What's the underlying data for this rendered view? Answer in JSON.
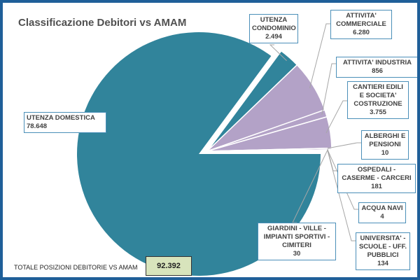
{
  "chart_data": {
    "type": "pie",
    "title": "Classificazione Debitori vs AMAM",
    "slices": [
      {
        "label": "UTENZA DOMESTICA",
        "display": "78.648",
        "value": 78648,
        "color": "#31849b",
        "exploded": true
      },
      {
        "label": "UTENZA CONDOMINIO",
        "display": "2.494",
        "value": 2494,
        "color": "#31849b"
      },
      {
        "label": "ATTIVITA' COMMERCIALE",
        "display": "6.280",
        "value": 6280,
        "color": "#b3a2c7"
      },
      {
        "label": "ATTIVITA' INDUSTRIA",
        "display": "856",
        "value": 856,
        "color": "#b3a2c7"
      },
      {
        "label": "CANTIERI EDILI E SOCIETA' COSTRUZIONE",
        "display": "3.755",
        "value": 3755,
        "color": "#b3a2c7"
      },
      {
        "label": "ALBERGHI E PENSIONI",
        "display": "10",
        "value": 10,
        "color": "#b3a2c7"
      },
      {
        "label": "OSPEDALI - CASERME - CARCERI",
        "display": "181",
        "value": 181,
        "color": "#b3a2c7"
      },
      {
        "label": "ACQUA NAVI",
        "display": "4",
        "value": 4,
        "color": "#b3a2c7"
      },
      {
        "label": "GIARDINI - VILLE - IMPIANTI SPORTIVI - CIMITERI",
        "display": "30",
        "value": 30,
        "color": "#b3a2c7"
      },
      {
        "label": "UNIVERSITA' - SCUOLE - UFF. PUBBLICI",
        "display": "134",
        "value": 134,
        "color": "#b3a2c7"
      }
    ]
  },
  "total": {
    "label": "TOTALE POSIZIONI DEBITORIE VS AMAM",
    "value": "92.392"
  }
}
